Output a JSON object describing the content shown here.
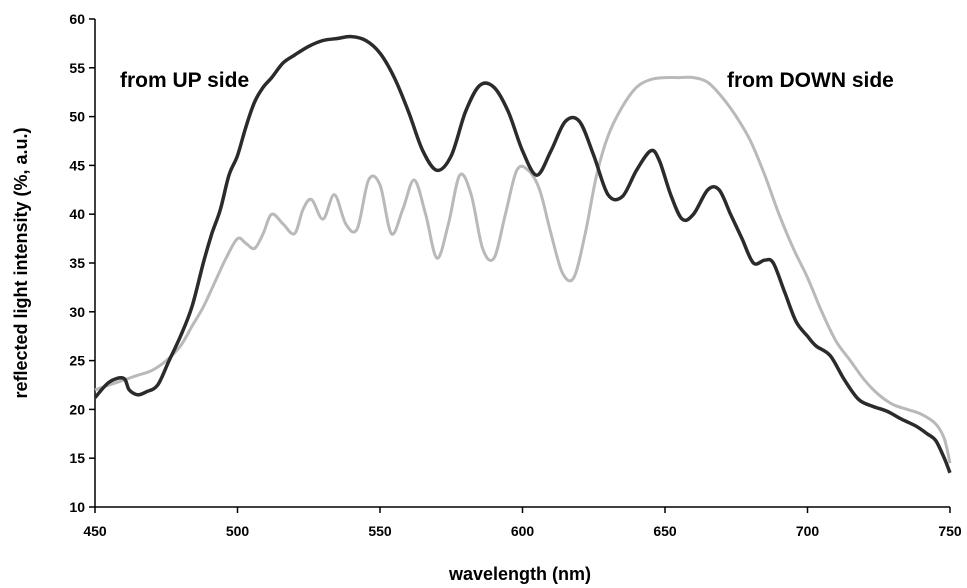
{
  "chart_data": {
    "type": "line",
    "title": "",
    "xlabel": "wavelength (nm)",
    "ylabel": "reflected light intensity (%, a.u.)",
    "xlim": [
      450,
      750
    ],
    "ylim": [
      10,
      60
    ],
    "xticks": [
      450,
      500,
      550,
      600,
      650,
      700,
      750
    ],
    "yticks": [
      10,
      15,
      20,
      25,
      30,
      35,
      40,
      45,
      50,
      55,
      60
    ],
    "grid": false,
    "legend": "none",
    "series": [
      {
        "name": "from UP side",
        "color": "#2b2b2b",
        "x": [
          450,
          455,
          460,
          462,
          465,
          468,
          472,
          476,
          480,
          484,
          488,
          491,
          494,
          497,
          500,
          503,
          506,
          509,
          512,
          516,
          520,
          525,
          530,
          535,
          540,
          545,
          550,
          555,
          560,
          565,
          570,
          575,
          580,
          585,
          590,
          595,
          600,
          605,
          610,
          615,
          620,
          625,
          630,
          635,
          640,
          645,
          648,
          652,
          656,
          660,
          665,
          669,
          673,
          677,
          681,
          685,
          688,
          692,
          696,
          700,
          703,
          708,
          713,
          718,
          723,
          728,
          733,
          738,
          742,
          745,
          748,
          750
        ],
        "y": [
          21.2,
          22.8,
          23.2,
          22.0,
          21.5,
          21.8,
          22.5,
          25.0,
          27.5,
          30.5,
          35.0,
          38.0,
          40.5,
          44.0,
          46.0,
          49.0,
          51.5,
          53.0,
          54.0,
          55.5,
          56.3,
          57.2,
          57.8,
          58.0,
          58.2,
          57.8,
          56.5,
          54.0,
          50.5,
          46.5,
          44.5,
          46.0,
          50.5,
          53.2,
          53.0,
          50.5,
          46.5,
          44.0,
          46.5,
          49.5,
          49.5,
          46.0,
          42.0,
          41.8,
          44.5,
          46.5,
          45.5,
          42.0,
          39.5,
          40.0,
          42.5,
          42.5,
          40.0,
          37.5,
          35.0,
          35.3,
          35.0,
          32.0,
          29.0,
          27.5,
          26.5,
          25.5,
          23.0,
          21.0,
          20.3,
          19.8,
          19.0,
          18.3,
          17.5,
          16.8,
          15.0,
          13.5
        ]
      },
      {
        "name": "from DOWN side",
        "color": "#b9b9b9",
        "x": [
          450,
          455,
          460,
          465,
          470,
          475,
          480,
          484,
          488,
          492,
          496,
          500,
          503,
          506,
          509,
          512,
          516,
          520,
          523,
          526,
          530,
          534,
          538,
          542,
          546,
          550,
          554,
          558,
          562,
          566,
          570,
          574,
          578,
          582,
          586,
          590,
          594,
          598,
          602,
          606,
          610,
          614,
          618,
          622,
          626,
          630,
          635,
          640,
          645,
          650,
          655,
          660,
          665,
          670,
          675,
          680,
          685,
          690,
          695,
          700,
          705,
          710,
          715,
          720,
          725,
          730,
          735,
          740,
          745,
          748,
          750
        ],
        "y": [
          22.0,
          22.5,
          23.0,
          23.5,
          24.0,
          25.0,
          26.5,
          28.5,
          30.5,
          33.0,
          35.5,
          37.5,
          37.0,
          36.5,
          38.0,
          40.0,
          39.0,
          38.0,
          40.5,
          41.5,
          39.5,
          42.0,
          39.0,
          38.5,
          43.5,
          43.0,
          38.0,
          40.5,
          43.5,
          40.0,
          35.5,
          39.0,
          44.0,
          42.0,
          36.5,
          35.5,
          40.0,
          44.5,
          44.5,
          42.5,
          38.0,
          34.0,
          33.5,
          38.0,
          44.0,
          48.0,
          51.0,
          53.0,
          53.8,
          54.0,
          54.0,
          54.0,
          53.5,
          52.0,
          50.0,
          47.5,
          44.0,
          40.0,
          36.5,
          33.5,
          30.0,
          27.0,
          25.0,
          23.0,
          21.5,
          20.5,
          20.0,
          19.5,
          18.5,
          17.0,
          14.5
        ]
      }
    ],
    "annotations": [
      "from UP side",
      "from DOWN side"
    ]
  }
}
